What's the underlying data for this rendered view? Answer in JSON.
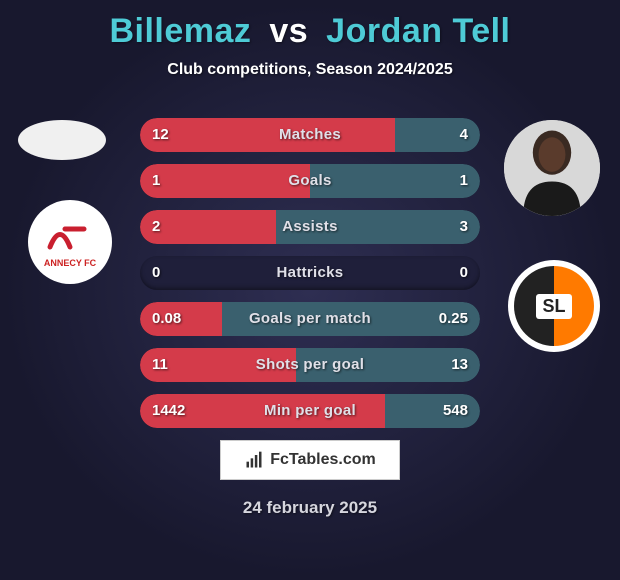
{
  "title": {
    "player1": "Billemaz",
    "vs": "vs",
    "player2": "Jordan Tell"
  },
  "subtitle": "Club competitions, Season 2024/2025",
  "colors": {
    "player1_bar": "#d43b4a",
    "player2_bar": "#3a606e",
    "bar_track": "#1f1f3a",
    "accent_text": "#4ecbd6"
  },
  "stats": [
    {
      "label": "Matches",
      "v1": "12",
      "v2": "4",
      "p1_pct": 75,
      "p2_pct": 25
    },
    {
      "label": "Goals",
      "v1": "1",
      "v2": "1",
      "p1_pct": 50,
      "p2_pct": 50
    },
    {
      "label": "Assists",
      "v1": "2",
      "v2": "3",
      "p1_pct": 40,
      "p2_pct": 60
    },
    {
      "label": "Hattricks",
      "v1": "0",
      "v2": "0",
      "p1_pct": 0,
      "p2_pct": 0
    },
    {
      "label": "Goals per match",
      "v1": "0.08",
      "v2": "0.25",
      "p1_pct": 24,
      "p2_pct": 76
    },
    {
      "label": "Shots per goal",
      "v1": "11",
      "v2": "13",
      "p1_pct": 46,
      "p2_pct": 54
    },
    {
      "label": "Min per goal",
      "v1": "1442",
      "v2": "548",
      "p1_pct": 72,
      "p2_pct": 28
    }
  ],
  "footer": {
    "brand": "FcTables.com",
    "date": "24 february 2025"
  },
  "clubs": {
    "left_label": "ANNECY FC",
    "right_label": "SL"
  }
}
